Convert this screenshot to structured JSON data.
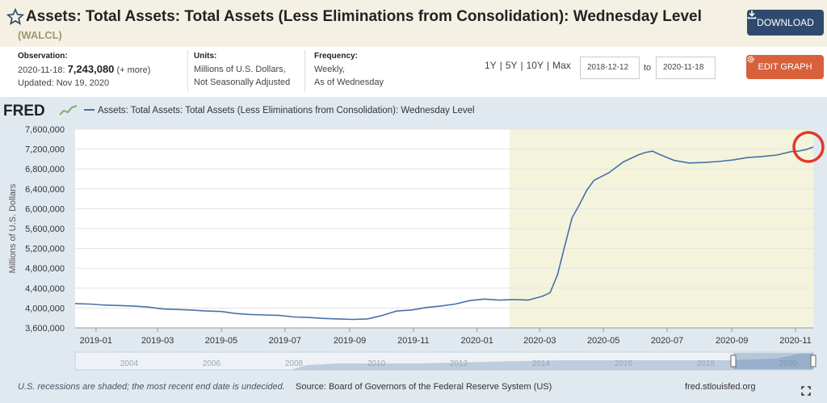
{
  "header": {
    "title": "Assets: Total Assets: Total Assets (Less Eliminations from Consolidation): Wednesday Level",
    "series_id": "(WALCL)",
    "download_label": "DOWNLOAD"
  },
  "meta": {
    "observation_label": "Observation:",
    "observation_date": "2020-11-18:",
    "observation_value": "7,243,080",
    "observation_more": "(+ more)",
    "updated": "Updated: Nov 19, 2020",
    "units_label": "Units:",
    "units_line1": "Millions of U.S. Dollars,",
    "units_line2": "Not Seasonally Adjusted",
    "frequency_label": "Frequency:",
    "frequency_line1": "Weekly,",
    "frequency_line2": "As of Wednesday"
  },
  "controls": {
    "ranges": [
      "1Y",
      "5Y",
      "10Y",
      "Max"
    ],
    "start_date": "2018-12-12",
    "to_label": "to",
    "end_date": "2020-11-18",
    "edit_label": "EDIT GRAPH"
  },
  "footer": {
    "note": "U.S. recessions are shaded; the most recent end date is undecided.",
    "source": "Source: Board of Governors of the Federal Reserve System (US)",
    "site": "fred.stlouisfed.org"
  },
  "colors": {
    "line": "#4572a7",
    "recession": "#f4f4dc",
    "annotation": "#e0392b"
  },
  "chart_data": {
    "type": "line",
    "logo": "FRED",
    "legend": "Assets: Total Assets: Total Assets (Less Eliminations from Consolidation): Wednesday Level",
    "ylabel": "Millions of U.S. Dollars",
    "ylim": [
      3600000,
      7600000
    ],
    "yticks": [
      3600000,
      4000000,
      4400000,
      4800000,
      5200000,
      5600000,
      6000000,
      6400000,
      6800000,
      7200000,
      7600000
    ],
    "ytick_labels": [
      "3,600,000",
      "4,000,000",
      "4,400,000",
      "4,800,000",
      "5,200,000",
      "5,600,000",
      "6,000,000",
      "6,400,000",
      "6,800,000",
      "7,200,000",
      "7,600,000"
    ],
    "xlim": [
      "2018-12-12",
      "2020-11-18"
    ],
    "xticks": [
      "2019-01",
      "2019-03",
      "2019-05",
      "2019-07",
      "2019-09",
      "2019-11",
      "2020-01",
      "2020-03",
      "2020-05",
      "2020-07",
      "2020-09",
      "2020-11"
    ],
    "recession": [
      "2020-02-01",
      "2020-11-18"
    ],
    "navigator_labels": [
      "2004",
      "2006",
      "2008",
      "2010",
      "2012",
      "2014",
      "2016",
      "2018",
      "2020"
    ],
    "grid": true,
    "x": [
      "2018-12-12",
      "2018-12-26",
      "2019-01-09",
      "2019-01-23",
      "2019-02-06",
      "2019-02-20",
      "2019-03-06",
      "2019-03-20",
      "2019-04-03",
      "2019-04-17",
      "2019-05-01",
      "2019-05-15",
      "2019-05-29",
      "2019-06-12",
      "2019-06-26",
      "2019-07-10",
      "2019-07-24",
      "2019-08-07",
      "2019-08-21",
      "2019-09-04",
      "2019-09-18",
      "2019-10-02",
      "2019-10-16",
      "2019-10-30",
      "2019-11-13",
      "2019-11-27",
      "2019-12-11",
      "2019-12-25",
      "2020-01-08",
      "2020-01-22",
      "2020-02-05",
      "2020-02-19",
      "2020-03-04",
      "2020-03-11",
      "2020-03-18",
      "2020-03-25",
      "2020-04-01",
      "2020-04-08",
      "2020-04-15",
      "2020-04-22",
      "2020-05-06",
      "2020-05-20",
      "2020-06-03",
      "2020-06-10",
      "2020-06-17",
      "2020-06-24",
      "2020-07-08",
      "2020-07-22",
      "2020-08-05",
      "2020-08-19",
      "2020-09-02",
      "2020-09-16",
      "2020-09-30",
      "2020-10-14",
      "2020-10-28",
      "2020-11-04",
      "2020-11-11",
      "2020-11-18"
    ],
    "values": [
      4090000,
      4080000,
      4060000,
      4050000,
      4040000,
      4020000,
      3980000,
      3970000,
      3960000,
      3940000,
      3930000,
      3890000,
      3870000,
      3860000,
      3850000,
      3820000,
      3810000,
      3790000,
      3780000,
      3770000,
      3780000,
      3850000,
      3940000,
      3960000,
      4010000,
      4040000,
      4080000,
      4150000,
      4180000,
      4160000,
      4170000,
      4160000,
      4240000,
      4310000,
      4670000,
      5250000,
      5820000,
      6080000,
      6370000,
      6570000,
      6720000,
      6940000,
      7080000,
      7130000,
      7160000,
      7090000,
      6970000,
      6920000,
      6930000,
      6950000,
      6980000,
      7030000,
      7050000,
      7080000,
      7150000,
      7160000,
      7190000,
      7243080
    ]
  }
}
